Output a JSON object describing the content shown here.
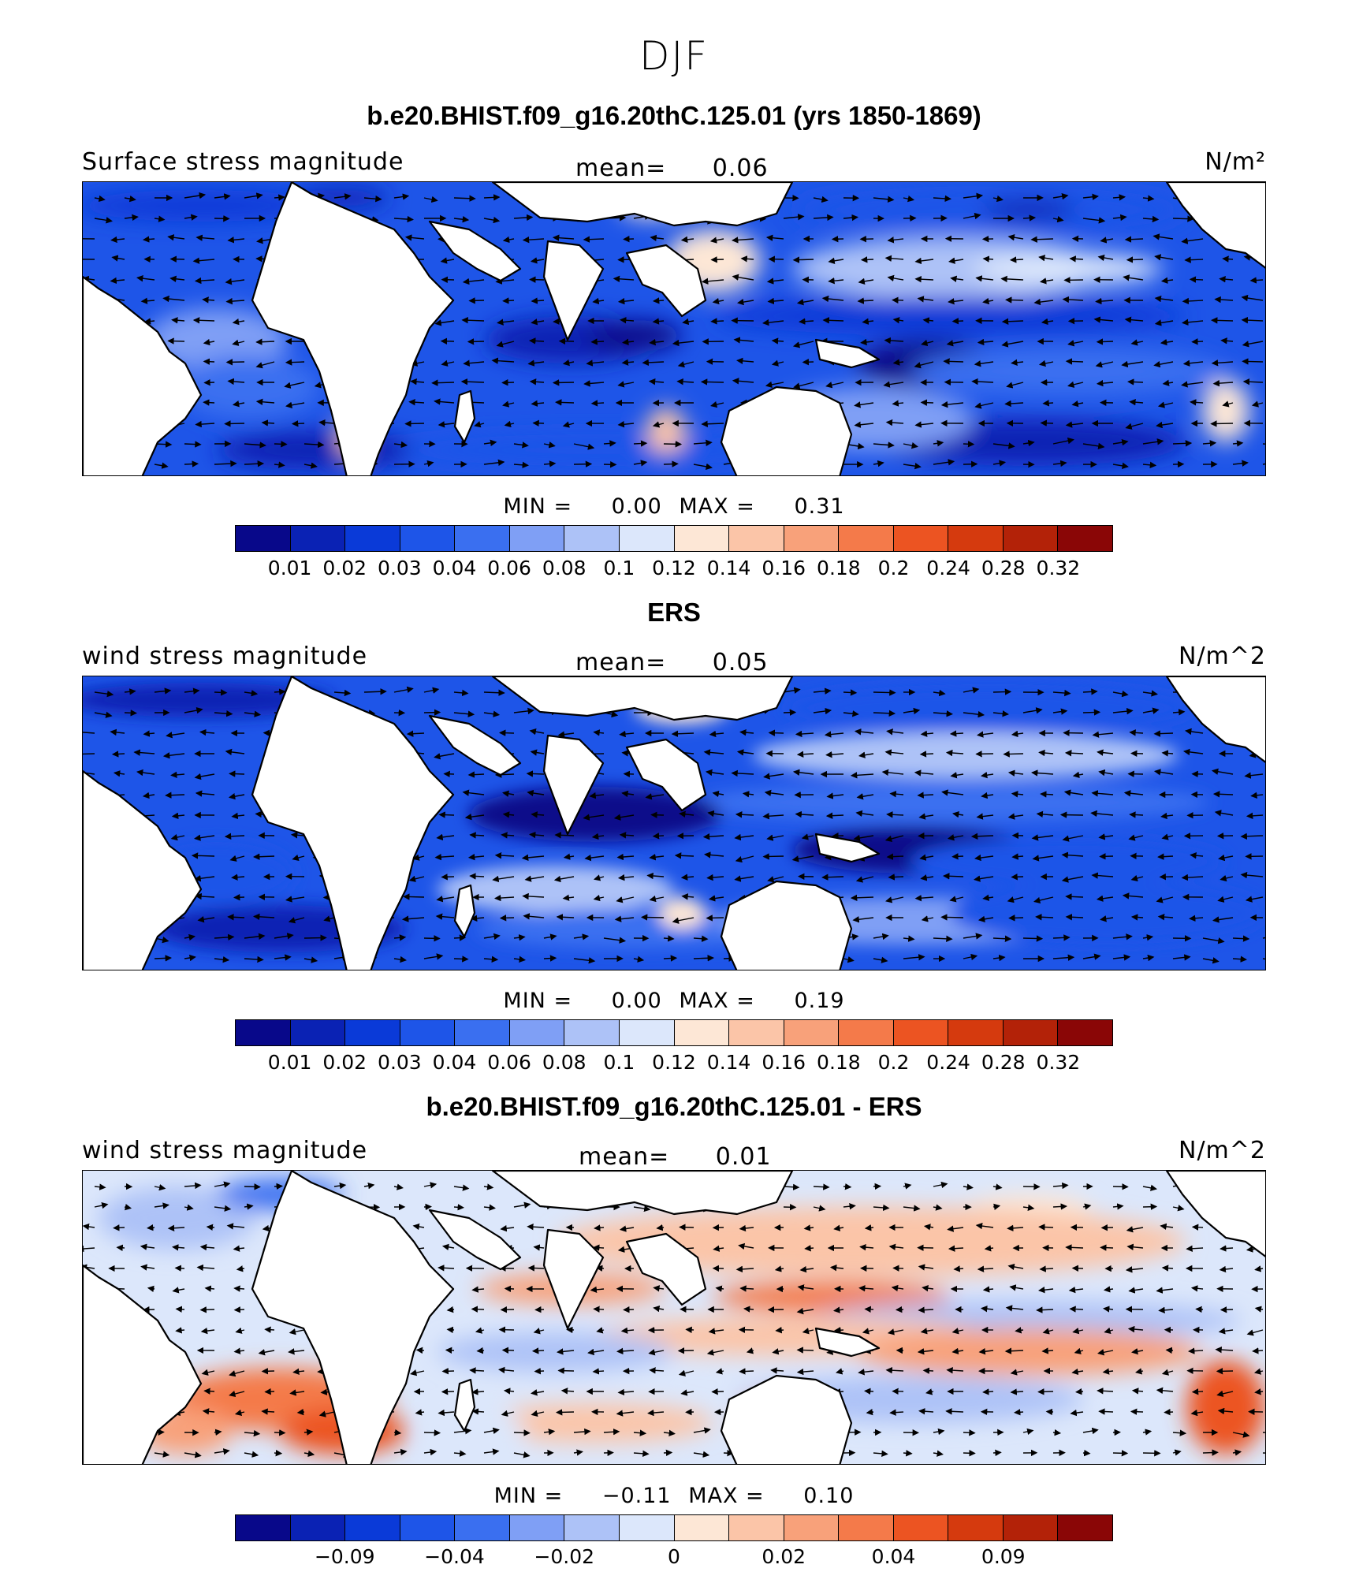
{
  "figure": {
    "title": "DJF",
    "colors": [
      "#08088a",
      "#0a22b4",
      "#0a3ad8",
      "#1e55e8",
      "#3a6ff0",
      "#7f9ff5",
      "#adc2f7",
      "#dce7fb",
      "#fde7d6",
      "#fbc5a8",
      "#f8a17a",
      "#f47a4a",
      "#ec5422",
      "#d53a0e",
      "#b32208",
      "#8a0606"
    ]
  },
  "panels": [
    {
      "title": "b.e20.BHIST.f09_g16.20thC.125.01 (yrs 1850-1869)",
      "left_label": "Surface stress magnitude",
      "mean_label": "mean=",
      "mean_value": "0.06",
      "units": "N/m²",
      "min_label": "MIN =",
      "min_value": "0.00",
      "max_label": "MAX =",
      "max_value": "0.31",
      "colorbar_labels": [
        "0.01",
        "0.02",
        "0.03",
        "0.04",
        "0.06",
        "0.08",
        "0.1",
        "0.12",
        "0.14",
        "0.16",
        "0.18",
        "0.2",
        "0.24",
        "0.28",
        "0.32"
      ]
    },
    {
      "title": "ERS",
      "left_label": "wind stress magnitude",
      "mean_label": "mean=",
      "mean_value": "0.05",
      "units": "N/m^2",
      "min_label": "MIN =",
      "min_value": "0.00",
      "max_label": "MAX =",
      "max_value": "0.19",
      "colorbar_labels": [
        "0.01",
        "0.02",
        "0.03",
        "0.04",
        "0.06",
        "0.08",
        "0.1",
        "0.12",
        "0.14",
        "0.16",
        "0.18",
        "0.2",
        "0.24",
        "0.28",
        "0.32"
      ]
    },
    {
      "title": "b.e20.BHIST.f09_g16.20thC.125.01 - ERS",
      "left_label": "wind stress magnitude",
      "mean_label": "mean=",
      "mean_value": "0.01",
      "units": "N/m^2",
      "min_label": "MIN =",
      "min_value": "−0.11",
      "max_label": "MAX =",
      "max_value": "0.10",
      "colorbar_labels": [
        "−0.09",
        "−0.04",
        "−0.02",
        "0",
        "0.02",
        "0.04",
        "0.09"
      ]
    }
  ]
}
